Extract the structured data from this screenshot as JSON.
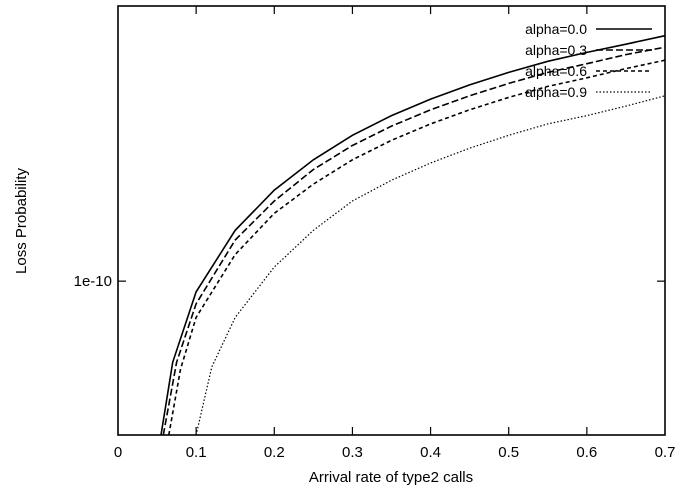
{
  "chart_data": {
    "type": "line",
    "title": "",
    "xlabel": "Arrival rate of type2 calls",
    "ylabel": "Loss Probability",
    "xlim": [
      0,
      0.7
    ],
    "ylim": [
      2.2e-11,
      1.5e-09
    ],
    "y_scale": "log",
    "x_ticks": [
      "0",
      "0.1",
      "0.2",
      "0.3",
      "0.4",
      "0.5",
      "0.6",
      "0.7"
    ],
    "y_ticks": [
      {
        "value": 1e-10,
        "label": "1e-10"
      }
    ],
    "grid": false,
    "legend_position": "top-right",
    "series": [
      {
        "name": "alpha=0.0",
        "dash": "solid",
        "color": "#000000",
        "x": [
          0.055,
          0.07,
          0.1,
          0.15,
          0.2,
          0.25,
          0.3,
          0.35,
          0.4,
          0.45,
          0.5,
          0.55,
          0.6,
          0.65,
          0.7
        ],
        "y": [
          2.2e-11,
          4.5e-11,
          9e-11,
          1.65e-10,
          2.45e-10,
          3.3e-10,
          4.2e-10,
          5.1e-10,
          6e-10,
          6.9e-10,
          7.8e-10,
          8.7e-10,
          9.5e-10,
          1.03e-09,
          1.12e-09
        ]
      },
      {
        "name": "alpha=0.3",
        "dash": "dashed",
        "color": "#000000",
        "x": [
          0.058,
          0.075,
          0.1,
          0.15,
          0.2,
          0.25,
          0.3,
          0.35,
          0.4,
          0.45,
          0.5,
          0.55,
          0.6,
          0.65,
          0.7
        ],
        "y": [
          2.2e-11,
          4.5e-11,
          8e-11,
          1.5e-10,
          2.2e-10,
          3e-10,
          3.8e-10,
          4.6e-10,
          5.4e-10,
          6.2e-10,
          7e-10,
          7.8e-10,
          8.5e-10,
          9.3e-10,
          1e-09
        ]
      },
      {
        "name": "alpha=0.6",
        "dash": "short-dashed",
        "color": "#000000",
        "x": [
          0.065,
          0.08,
          0.1,
          0.15,
          0.2,
          0.25,
          0.3,
          0.35,
          0.4,
          0.45,
          0.5,
          0.55,
          0.6,
          0.65,
          0.7
        ],
        "y": [
          2.2e-11,
          4.2e-11,
          7e-11,
          1.3e-10,
          1.95e-10,
          2.6e-10,
          3.3e-10,
          4e-10,
          4.7e-10,
          5.4e-10,
          6.1e-10,
          6.8e-10,
          7.4e-10,
          8.1e-10,
          8.8e-10
        ]
      },
      {
        "name": "alpha=0.9",
        "dash": "dotted",
        "color": "#000000",
        "x": [
          0.1,
          0.12,
          0.15,
          0.2,
          0.25,
          0.3,
          0.35,
          0.4,
          0.45,
          0.5,
          0.55,
          0.6,
          0.65,
          0.7
        ],
        "y": [
          2.2e-11,
          4.3e-11,
          7e-11,
          1.15e-10,
          1.65e-10,
          2.2e-10,
          2.7e-10,
          3.2e-10,
          3.7e-10,
          4.2e-10,
          4.7e-10,
          5.1e-10,
          5.6e-10,
          6.2e-10
        ]
      }
    ]
  }
}
